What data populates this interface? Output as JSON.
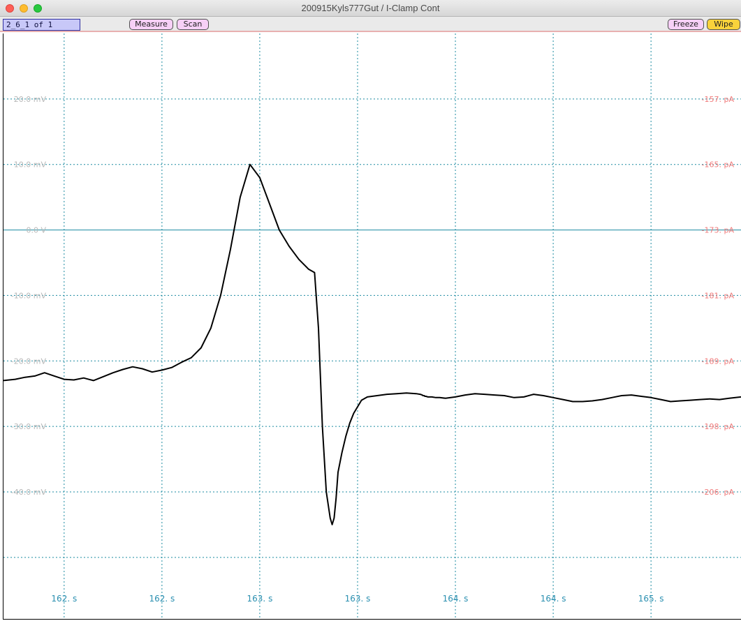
{
  "window": {
    "title": "200915Kyls777Gut / I-Clamp Cont"
  },
  "toolbar": {
    "sweep_label": "2_6_1 of 1",
    "measure_label": "Measure",
    "scan_label": "Scan",
    "freeze_label": "Freeze",
    "wipe_label": "Wipe"
  },
  "colors": {
    "trace": "#000000",
    "grid": "#1a8aa0",
    "left_axis": "#b8b8b8",
    "right_axis": "#f07b7b",
    "time_axis": "#2a8fb0",
    "zero_line": "#1a8aa0"
  },
  "chart_data": {
    "type": "line",
    "title": "",
    "xlabel": "",
    "ylabel": "",
    "grid": true,
    "left_axis": {
      "unit": "mV",
      "ticks": [
        20,
        10,
        0,
        -10,
        -20,
        -30,
        -40
      ],
      "tick_labels": [
        "20.0 mV",
        "10.0 mV",
        "0.0 V",
        "-10.0 mV",
        "-20.0 mV",
        "-30.0 mV",
        "-40.0 mV"
      ],
      "ylim": [
        -59.5,
        30.0
      ]
    },
    "right_axis": {
      "unit": "pA",
      "tick_labels": [
        "-157. pA",
        "-165. pA",
        "-173. pA",
        "-181. pA",
        "-189. pA",
        "-198. pA",
        "-206. pA"
      ]
    },
    "x_axis": {
      "unit": "s",
      "ticks": [
        162.0,
        162.5,
        163.0,
        163.5,
        164.0,
        164.5,
        165.0
      ],
      "tick_labels": [
        "162. s",
        "162. s",
        "163. s",
        "163. s",
        "164. s",
        "164. s",
        "165. s"
      ],
      "xlim": [
        161.69,
        165.46
      ]
    },
    "series": [
      {
        "x": [
          161.69,
          161.75,
          161.8,
          161.85,
          161.9,
          161.95,
          162.0,
          162.05,
          162.1,
          162.15,
          162.2,
          162.25,
          162.3,
          162.35,
          162.4,
          162.45,
          162.5,
          162.55,
          162.6,
          162.65,
          162.7,
          162.75,
          162.8,
          162.85,
          162.9,
          162.95,
          163.0,
          163.05,
          163.1,
          163.15,
          163.2,
          163.25,
          163.28,
          163.3,
          163.32,
          163.34,
          163.36,
          163.37,
          163.38,
          163.39,
          163.4,
          163.42,
          163.44,
          163.46,
          163.48,
          163.5,
          163.52,
          163.55,
          163.6,
          163.65,
          163.7,
          163.75,
          163.8,
          163.82,
          163.83,
          163.835,
          163.84,
          163.845,
          163.85,
          163.86,
          163.87,
          163.88,
          163.9,
          163.92,
          163.95,
          164.0,
          164.05,
          164.1,
          164.15,
          164.2,
          164.25,
          164.3,
          164.35,
          164.4,
          164.45,
          164.5,
          164.55,
          164.6,
          164.65,
          164.7,
          164.75,
          164.8,
          164.85,
          164.9,
          164.95,
          165.0,
          165.05,
          165.1,
          165.15,
          165.2,
          165.25,
          165.3,
          165.35,
          165.4,
          165.46
        ],
        "y": [
          -23.0,
          -22.8,
          -22.5,
          -22.3,
          -21.8,
          -22.3,
          -22.8,
          -22.9,
          -22.6,
          -23.0,
          -22.4,
          -21.8,
          -21.3,
          -20.9,
          -21.2,
          -21.7,
          -21.4,
          -21.0,
          -20.2,
          -19.5,
          -18.0,
          -15.0,
          -10.0,
          -3.0,
          5.0,
          10.0,
          8.0,
          4.0,
          0.0,
          -2.5,
          -4.5,
          -6.0,
          -6.5,
          -15.0,
          -30.0,
          -40.0,
          -44.0,
          -45.0,
          -44.0,
          -41.0,
          -37.0,
          -34.0,
          -31.5,
          -29.5,
          -28.0,
          -27.0,
          -26.0,
          -25.5,
          -25.3,
          -25.1,
          -25.0,
          -24.9,
          -25.0,
          -25.1,
          -25.2,
          -25.3,
          -25.3,
          -25.4,
          -25.4,
          -25.5,
          -25.5,
          -25.5,
          -25.6,
          -25.6,
          -25.7,
          -25.5,
          -25.2,
          -25.0,
          -25.1,
          -25.2,
          -25.3,
          -25.6,
          -25.5,
          -25.1,
          -25.3,
          -25.6,
          -25.9,
          -26.2,
          -26.2,
          -26.1,
          -25.9,
          -25.6,
          -25.3,
          -25.2,
          -25.4,
          -25.6,
          -25.9,
          -26.2,
          -26.1,
          -26.0,
          -25.9,
          -25.8,
          -25.9,
          -25.7,
          -25.5
        ]
      }
    ]
  }
}
